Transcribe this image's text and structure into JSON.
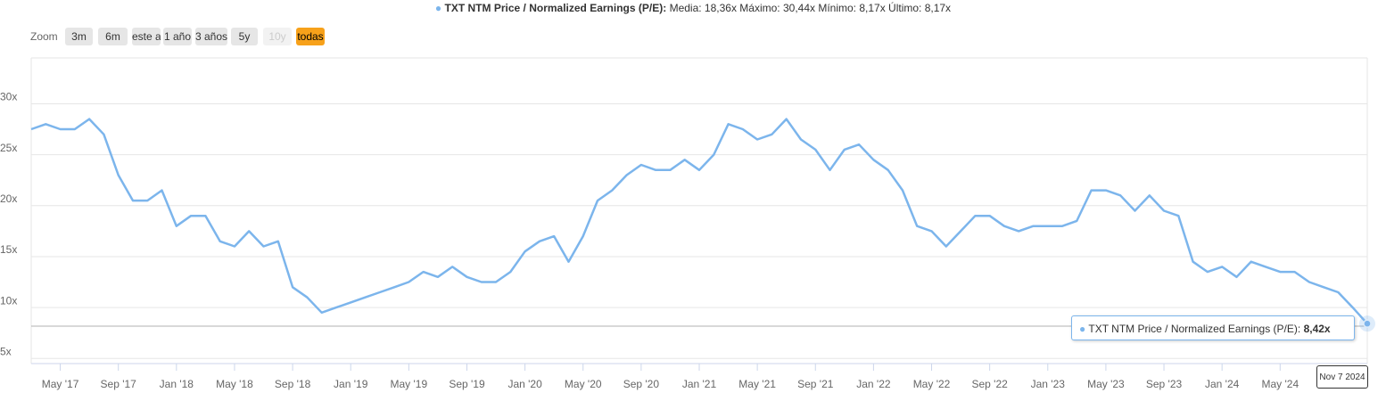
{
  "chart_data": {
    "type": "line",
    "legend_title": "TXT NTM Price / Normalized Earnings (P/E):",
    "legend_stats": "Media: 18,36x Máximo: 30,44x Mínimo: 8,17x Último: 8,17x",
    "zoom_label": "Zoom",
    "zoom_buttons": [
      "3m",
      "6m",
      "este año",
      "1 año",
      "3 años",
      "5y",
      "10y",
      "todas"
    ],
    "x": [
      "2017-03",
      "2017-04",
      "2017-05",
      "2017-06",
      "2017-07",
      "2017-08",
      "2017-09",
      "2017-10",
      "2017-11",
      "2017-12",
      "2018-01",
      "2018-02",
      "2018-03",
      "2018-04",
      "2018-05",
      "2018-06",
      "2018-07",
      "2018-08",
      "2018-09",
      "2018-10",
      "2018-11",
      "2018-12",
      "2019-01",
      "2019-02",
      "2019-03",
      "2019-04",
      "2019-05",
      "2019-06",
      "2019-07",
      "2019-08",
      "2019-09",
      "2019-10",
      "2019-11",
      "2019-12",
      "2020-01",
      "2020-02",
      "2020-03",
      "2020-04",
      "2020-05",
      "2020-06",
      "2020-07",
      "2020-08",
      "2020-09",
      "2020-10",
      "2020-11",
      "2020-12",
      "2021-01",
      "2021-02",
      "2021-03",
      "2021-04",
      "2021-05",
      "2021-06",
      "2021-07",
      "2021-08",
      "2021-09",
      "2021-10",
      "2021-11",
      "2021-12",
      "2022-01",
      "2022-02",
      "2022-03",
      "2022-04",
      "2022-05",
      "2022-06",
      "2022-07",
      "2022-08",
      "2022-09",
      "2022-10",
      "2022-11",
      "2022-12",
      "2023-01",
      "2023-02",
      "2023-03",
      "2023-04",
      "2023-05",
      "2023-06",
      "2023-07",
      "2023-08",
      "2023-09",
      "2023-10",
      "2023-11",
      "2023-12",
      "2024-01",
      "2024-02",
      "2024-03",
      "2024-04",
      "2024-05",
      "2024-06",
      "2024-07",
      "2024-08",
      "2024-09",
      "2024-10",
      "2024-11"
    ],
    "series": [
      {
        "name": "TXT NTM Price / Normalized Earnings (P/E)",
        "color": "#7cb5ec",
        "values": [
          27.5,
          28,
          27.5,
          27.5,
          28.5,
          27,
          23,
          20.5,
          20.5,
          21.5,
          18,
          19,
          19,
          16.5,
          16,
          17.5,
          16,
          16.5,
          12,
          11,
          9.5,
          10,
          10.5,
          11,
          11.5,
          12,
          12.5,
          13.5,
          13,
          14,
          13,
          12.5,
          12.5,
          13.5,
          15.5,
          16.5,
          17,
          14.5,
          17,
          20.5,
          21.5,
          23,
          24,
          23.5,
          23.5,
          24.5,
          23.5,
          25,
          28,
          27.5,
          26.5,
          27,
          28.5,
          26.5,
          25.5,
          23.5,
          25.5,
          26,
          24.5,
          23.5,
          21.5,
          18,
          17.5,
          16,
          17.5,
          19,
          19,
          18,
          17.5,
          18,
          18,
          18,
          18.5,
          21.5,
          21.5,
          21,
          19.5,
          21,
          19.5,
          19,
          14.5,
          13.5,
          14,
          13,
          14.5,
          14,
          13.5,
          13.5,
          12.5,
          12,
          11.5,
          10,
          8.42
        ]
      }
    ],
    "xlim": [
      "2017-03",
      "2024-11"
    ],
    "xticks": [
      {
        "value": "2017-05",
        "label": "May '17"
      },
      {
        "value": "2017-09",
        "label": "Sep '17"
      },
      {
        "value": "2018-01",
        "label": "Jan '18"
      },
      {
        "value": "2018-05",
        "label": "May '18"
      },
      {
        "value": "2018-09",
        "label": "Sep '18"
      },
      {
        "value": "2019-01",
        "label": "Jan '19"
      },
      {
        "value": "2019-05",
        "label": "May '19"
      },
      {
        "value": "2019-09",
        "label": "Sep '19"
      },
      {
        "value": "2020-01",
        "label": "Jan '20"
      },
      {
        "value": "2020-05",
        "label": "May '20"
      },
      {
        "value": "2020-09",
        "label": "Sep '20"
      },
      {
        "value": "2021-01",
        "label": "Jan '21"
      },
      {
        "value": "2021-05",
        "label": "May '21"
      },
      {
        "value": "2021-09",
        "label": "Sep '21"
      },
      {
        "value": "2022-01",
        "label": "Jan '22"
      },
      {
        "value": "2022-05",
        "label": "May '22"
      },
      {
        "value": "2022-09",
        "label": "Sep '22"
      },
      {
        "value": "2023-01",
        "label": "Jan '23"
      },
      {
        "value": "2023-05",
        "label": "May '23"
      },
      {
        "value": "2023-09",
        "label": "Sep '23"
      },
      {
        "value": "2024-01",
        "label": "Jan '24"
      },
      {
        "value": "2024-05",
        "label": "May '24"
      }
    ],
    "ylim": [
      4.5,
      34.5
    ],
    "yticks": [
      {
        "value": 5,
        "label": "5x"
      },
      {
        "value": 10,
        "label": "10x"
      },
      {
        "value": 15,
        "label": "15x"
      },
      {
        "value": 20,
        "label": "20x"
      },
      {
        "value": 25,
        "label": "25x"
      },
      {
        "value": 30,
        "label": "30x"
      }
    ],
    "grid": true,
    "ref_line": 8.17,
    "tooltip": {
      "label": "TXT NTM Price / Normalized Earnings (P/E):",
      "value": 8.42,
      "value_label": "8,42x",
      "date": "Nov 7 2024"
    }
  }
}
